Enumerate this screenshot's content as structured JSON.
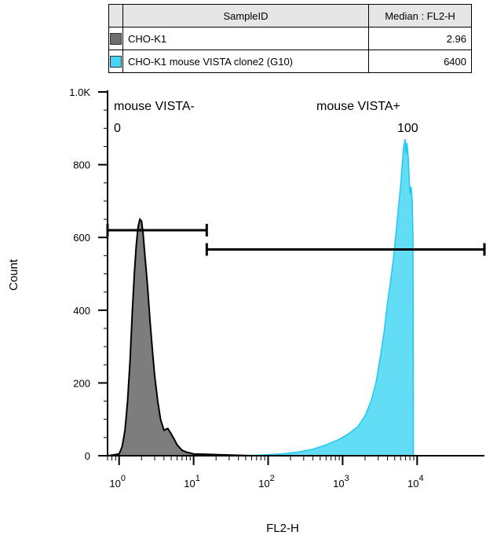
{
  "legend": {
    "headers": {
      "sample": "SampleID",
      "median": "Median : FL2-H"
    },
    "rows": [
      {
        "name": "CHO-K1",
        "median": "2.96",
        "color": "#6e6e6e"
      },
      {
        "name": "CHO-K1 mouse VISTA clone2 (G10)",
        "median": "6400",
        "color": "#46d5f5"
      }
    ]
  },
  "chart_data": {
    "type": "area",
    "xlabel": "FL2-H",
    "ylabel": "Count",
    "xscale": "log",
    "xlim": [
      0.7,
      80000
    ],
    "ylim": [
      0,
      1000
    ],
    "x_ticks": [
      {
        "value": 1,
        "base": "10",
        "exp": "0"
      },
      {
        "value": 10,
        "base": "10",
        "exp": "1"
      },
      {
        "value": 100,
        "base": "10",
        "exp": "2"
      },
      {
        "value": 1000,
        "base": "10",
        "exp": "3"
      },
      {
        "value": 10000,
        "base": "10",
        "exp": "4"
      }
    ],
    "y_ticks": [
      {
        "value": 0,
        "label": "0"
      },
      {
        "value": 200,
        "label": "200"
      },
      {
        "value": 400,
        "label": "400"
      },
      {
        "value": 600,
        "label": "600"
      },
      {
        "value": 800,
        "label": "800"
      },
      {
        "value": 1000,
        "label": "1.0K"
      }
    ],
    "series": [
      {
        "name": "CHO-K1",
        "color": "#6e6e6e",
        "fill": "#7d7d7d",
        "points": [
          [
            0.72,
            0
          ],
          [
            1.0,
            5
          ],
          [
            1.1,
            25
          ],
          [
            1.2,
            70
          ],
          [
            1.3,
            150
          ],
          [
            1.4,
            260
          ],
          [
            1.5,
            390
          ],
          [
            1.6,
            500
          ],
          [
            1.7,
            580
          ],
          [
            1.8,
            630
          ],
          [
            1.9,
            650
          ],
          [
            2.0,
            645
          ],
          [
            2.1,
            610
          ],
          [
            2.2,
            560
          ],
          [
            2.4,
            470
          ],
          [
            2.6,
            370
          ],
          [
            2.8,
            290
          ],
          [
            3.0,
            220
          ],
          [
            3.3,
            150
          ],
          [
            3.6,
            100
          ],
          [
            4.0,
            70
          ],
          [
            4.5,
            75
          ],
          [
            5.0,
            60
          ],
          [
            5.5,
            45
          ],
          [
            6.0,
            30
          ],
          [
            7.0,
            15
          ],
          [
            8.0,
            10
          ],
          [
            10,
            5
          ],
          [
            14,
            4
          ],
          [
            20,
            3
          ],
          [
            30,
            2
          ],
          [
            40,
            1
          ],
          [
            60,
            0
          ]
        ]
      },
      {
        "name": "CHO-K1 mouse VISTA clone2 (G10)",
        "color": "#1ec8f0",
        "fill": "#63dcf6",
        "points": [
          [
            40,
            0
          ],
          [
            80,
            2
          ],
          [
            150,
            5
          ],
          [
            250,
            10
          ],
          [
            400,
            18
          ],
          [
            600,
            30
          ],
          [
            900,
            45
          ],
          [
            1200,
            60
          ],
          [
            1600,
            80
          ],
          [
            2000,
            110
          ],
          [
            2400,
            150
          ],
          [
            2800,
            200
          ],
          [
            3200,
            270
          ],
          [
            3600,
            340
          ],
          [
            4000,
            420
          ],
          [
            4400,
            480
          ],
          [
            4800,
            540
          ],
          [
            5200,
            610
          ],
          [
            5600,
            680
          ],
          [
            6000,
            740
          ],
          [
            6300,
            800
          ],
          [
            6600,
            850
          ],
          [
            6900,
            870
          ],
          [
            7100,
            830
          ],
          [
            7300,
            860
          ],
          [
            7600,
            820
          ],
          [
            8000,
            720
          ],
          [
            8300,
            740
          ],
          [
            8600,
            700
          ],
          [
            8800,
            600
          ],
          [
            8900,
            0
          ]
        ]
      }
    ],
    "gates": [
      {
        "label": "mouse VISTA-",
        "value": "0",
        "x_start": 0.7,
        "x_end": 15,
        "y": 620
      },
      {
        "label": "mouse VISTA+",
        "value": "100",
        "x_start": 15,
        "x_end": 80000,
        "y": 567
      }
    ]
  }
}
